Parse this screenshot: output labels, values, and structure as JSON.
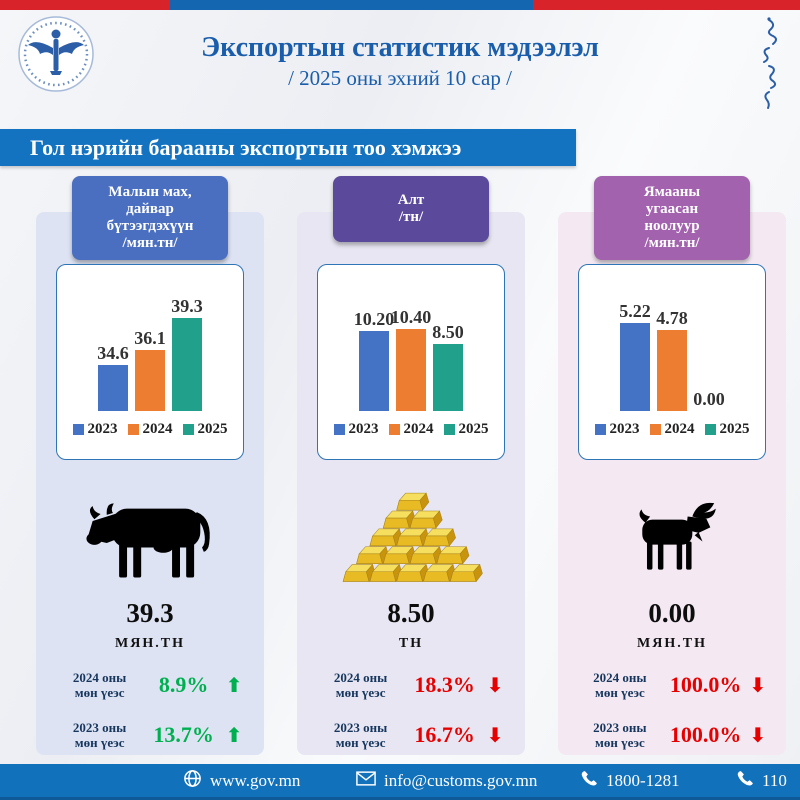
{
  "header": {
    "title": "Экспортын статистик мэдээлэл",
    "subtitle": "/ 2025 оны эхний 10 сар /"
  },
  "banner": {
    "text": "Гол нэрийн барааны экспортын тоо хэмжээ"
  },
  "colors": {
    "top_bar_red": "#d8232a",
    "top_bar_blue": "#1566b0",
    "banner_blue": "#1473c0",
    "footer_blue": "#1271bb",
    "title_blue": "#1a5dab",
    "bar_2023": "#4472c4",
    "bar_2024": "#ed7d31",
    "bar_2025": "#21a08b",
    "up_green": "#00b050",
    "down_red": "#e60000"
  },
  "panels": [
    {
      "title": "Малын мах,\nдайвар\nбүтээгдэхүүн\n/мян.тн/",
      "header_color": "#4a6fc0",
      "bg_color": "#dde3f3",
      "icon": "cow-icon",
      "total": "39.3",
      "unit": "мян.тн",
      "comparisons": [
        {
          "label": "2024 оны\nмөн үеэс",
          "value": "8.9%",
          "arrow": "⬆",
          "direction": "up",
          "color": "#00b050"
        },
        {
          "label": "2023 оны\nмөн үеэс",
          "value": "13.7%",
          "arrow": "⬆",
          "direction": "up",
          "color": "#00b050"
        }
      ]
    },
    {
      "title": "Алт\n/тн/",
      "header_color": "#5b4a9b",
      "bg_color": "#e7e6f2",
      "icon": "gold-bars-icon",
      "total": "8.50",
      "unit": "тн",
      "comparisons": [
        {
          "label": "2024 оны\nмөн үеэс",
          "value": "18.3%",
          "arrow": "⬇",
          "direction": "down",
          "color": "#e60000"
        },
        {
          "label": "2023 оны\nмөн үеэс",
          "value": "16.7%",
          "arrow": "⬇",
          "direction": "down",
          "color": "#e60000"
        }
      ]
    },
    {
      "title": "Ямааны\nугаасан\nноолуур\n/мян.тн/",
      "header_color": "#a262ae",
      "bg_color": "#f4e9f3",
      "icon": "goat-icon",
      "total": "0.00",
      "unit": "мян.тн",
      "comparisons": [
        {
          "label": "2024 оны\nмөн үеэс",
          "value": "100.0%",
          "arrow": "⬇",
          "direction": "down",
          "color": "#e60000"
        },
        {
          "label": "2023 оны\nмөн үеэс",
          "value": "100.0%",
          "arrow": "⬇",
          "direction": "down",
          "color": "#e60000"
        }
      ]
    }
  ],
  "chart_data": [
    {
      "type": "bar",
      "title": "Малын мах, дайвар бүтээгдэхүүн /мян.тн/",
      "categories": [
        "2023",
        "2024",
        "2025"
      ],
      "values": [
        34.6,
        36.1,
        39.3
      ],
      "labels": [
        "34.6",
        "36.1",
        "39.3"
      ],
      "colors": [
        "#4472c4",
        "#ed7d31",
        "#21a08b"
      ],
      "ylim": [
        30,
        41
      ],
      "xlabel": "",
      "ylabel": "",
      "grid": false,
      "legend_position": "bottom"
    },
    {
      "type": "bar",
      "title": "Алт /тн/",
      "categories": [
        "2023",
        "2024",
        "2025"
      ],
      "values": [
        10.2,
        10.4,
        8.5
      ],
      "labels": [
        "10.20",
        "10.40",
        "8.50"
      ],
      "colors": [
        "#4472c4",
        "#ed7d31",
        "#21a08b"
      ],
      "ylim": [
        0,
        14
      ],
      "xlabel": "",
      "ylabel": "",
      "grid": false,
      "legend_position": "bottom"
    },
    {
      "type": "bar",
      "title": "Ямааны угаасан ноолуур /мян.тн/",
      "categories": [
        "2023",
        "2024",
        "2025"
      ],
      "values": [
        5.22,
        4.78,
        0.0
      ],
      "labels": [
        "5.22",
        "4.78",
        "0.00"
      ],
      "colors": [
        "#4472c4",
        "#ed7d31",
        "#21a08b"
      ],
      "ylim": [
        0,
        6.5
      ],
      "xlabel": "",
      "ylabel": "",
      "grid": false,
      "legend_position": "bottom"
    }
  ],
  "footer": {
    "items": [
      {
        "icon": "globe-icon",
        "text": "www.gov.mn"
      },
      {
        "icon": "envelope-icon",
        "text": "info@customs.gov.mn"
      },
      {
        "icon": "phone-icon",
        "text": "1800-1281"
      },
      {
        "icon": "phone-icon",
        "text": "110"
      }
    ]
  }
}
